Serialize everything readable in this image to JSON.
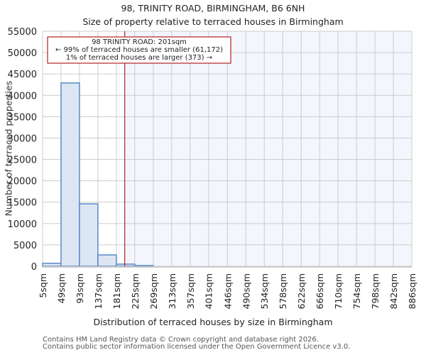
{
  "header": {
    "title": "98, TRINITY ROAD, BIRMINGHAM, B6 6NH",
    "subtitle": "Size of property relative to terraced houses in Birmingham"
  },
  "annotation": {
    "line1": "98 TRINITY ROAD: 201sqm",
    "line2": "← 99% of terraced houses are smaller (61,172)",
    "line3": "1% of terraced houses are larger (373) →",
    "marker_value": 201,
    "color": "#b22222"
  },
  "footer": {
    "line1": "Contains HM Land Registry data © Crown copyright and database right 2026.",
    "line2": "Contains public sector information licensed under the Open Government Licence v3.0."
  },
  "chart_data": {
    "type": "bar",
    "title": "98, TRINITY ROAD, BIRMINGHAM, B6 6NH",
    "subtitle": "Size of property relative to terraced houses in Birmingham",
    "xlabel": "Distribution of terraced houses by size in Birmingham",
    "ylabel": "Number of terraced properties",
    "categories": [
      "5sqm",
      "49sqm",
      "93sqm",
      "137sqm",
      "181sqm",
      "225sqm",
      "269sqm",
      "313sqm",
      "357sqm",
      "401sqm",
      "446sqm",
      "490sqm",
      "534sqm",
      "578sqm",
      "622sqm",
      "666sqm",
      "710sqm",
      "754sqm",
      "798sqm",
      "842sqm",
      "886sqm"
    ],
    "bin_edges": [
      5,
      49,
      93,
      137,
      181,
      225,
      269,
      313,
      357,
      401,
      446,
      490,
      534,
      578,
      622,
      666,
      710,
      754,
      798,
      842,
      886
    ],
    "values": [
      700,
      42900,
      14600,
      2650,
      500,
      150,
      0,
      0,
      0,
      0,
      0,
      0,
      0,
      0,
      0,
      0,
      0,
      0,
      0,
      0
    ],
    "ylim": [
      0,
      55000
    ],
    "yticks": [
      0,
      5000,
      10000,
      15000,
      20000,
      25000,
      30000,
      35000,
      40000,
      45000,
      50000,
      55000
    ],
    "grid": true,
    "highlight_line": 201,
    "colors": {
      "bar_fill": "#dce6f3",
      "bar_edge": "#5a8ac8",
      "highlight_bg": "#f3f6fd",
      "grid": "#cccccc",
      "marker": "#b22222"
    }
  }
}
